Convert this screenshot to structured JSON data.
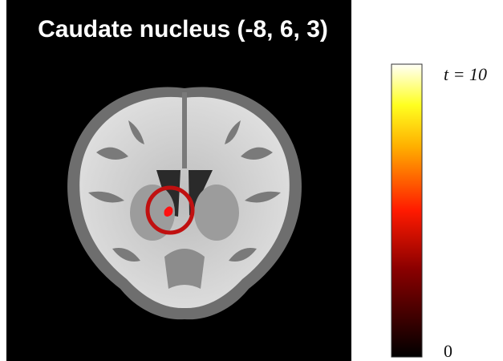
{
  "title": "Caudate nucleus (-8, 6, 3)",
  "colorbar": {
    "range": [
      0,
      10
    ],
    "ticks": [
      0,
      {
        "value": 10,
        "label": "t = 10"
      }
    ]
  }
}
